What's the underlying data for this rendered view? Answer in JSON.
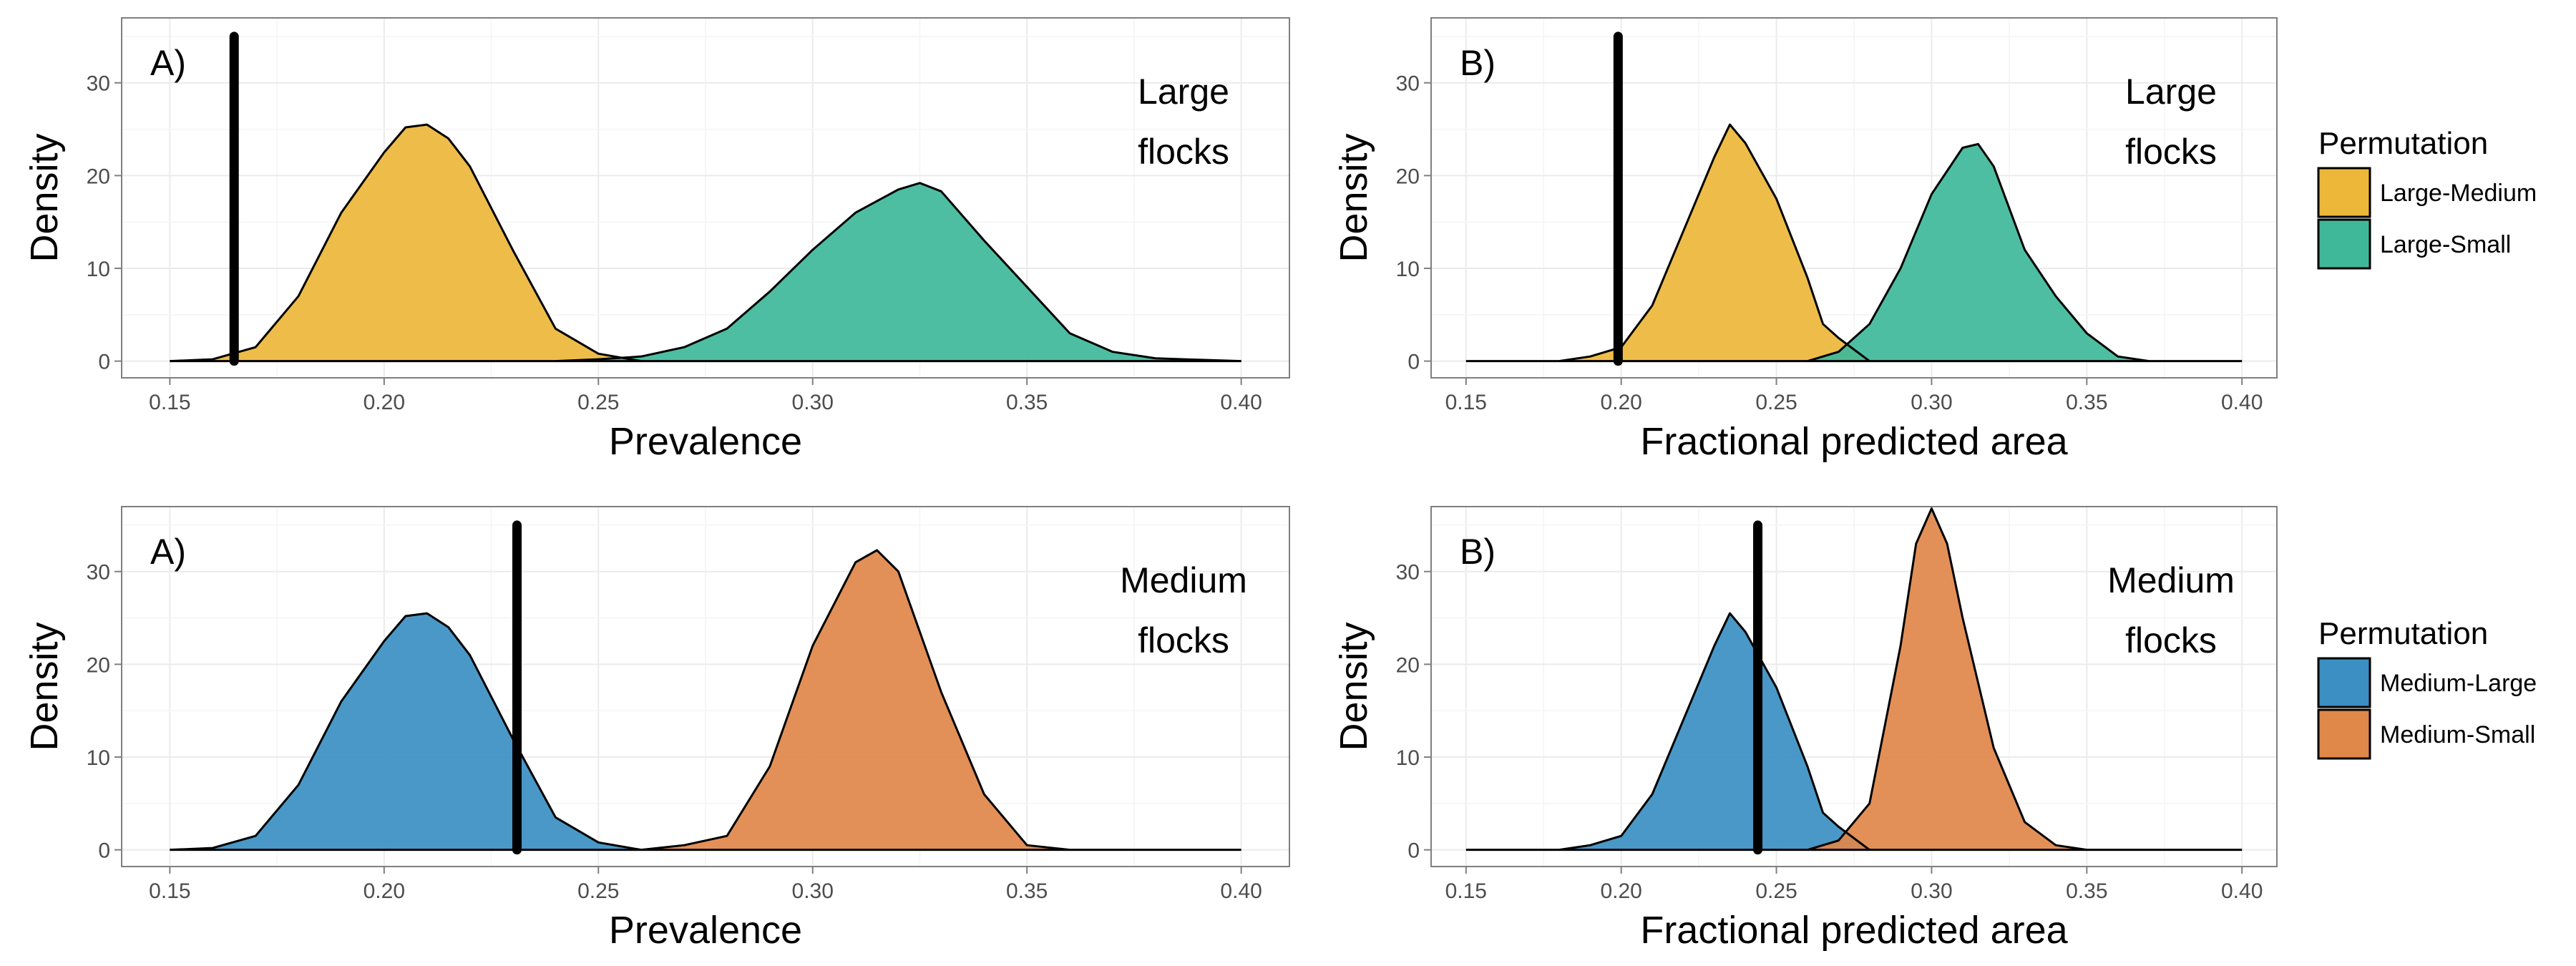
{
  "chart_data": [
    {
      "type": "area",
      "panel_tag": "A)",
      "note_lines": [
        "Large",
        "flocks"
      ],
      "xlabel": "Prevalence",
      "ylabel": "Density",
      "xlim": [
        0.15,
        0.4
      ],
      "ylim": [
        0,
        37
      ],
      "x_ticks": [
        "0.15",
        "0.20",
        "0.25",
        "0.30",
        "0.35",
        "0.40"
      ],
      "y_ticks": [
        "0",
        "10",
        "20",
        "30"
      ],
      "grid": true,
      "legend": "Large-Medium / Large-Small",
      "observed": {
        "x": 0.165,
        "y_top": 35
      },
      "series": [
        {
          "name": "Large-Medium",
          "color": "#EDB73A",
          "x": [
            0.15,
            0.16,
            0.17,
            0.18,
            0.19,
            0.2,
            0.205,
            0.21,
            0.215,
            0.22,
            0.23,
            0.24,
            0.25,
            0.26
          ],
          "y": [
            0,
            0.2,
            1.5,
            7,
            16,
            22.5,
            25.2,
            25.5,
            24,
            21,
            12,
            3.5,
            0.8,
            0
          ]
        },
        {
          "name": "Large-Small",
          "color": "#3FB89A",
          "x": [
            0.24,
            0.25,
            0.26,
            0.27,
            0.28,
            0.29,
            0.3,
            0.31,
            0.32,
            0.325,
            0.33,
            0.34,
            0.35,
            0.36,
            0.37,
            0.38,
            0.4
          ],
          "y": [
            0,
            0.2,
            0.5,
            1.5,
            3.5,
            7.5,
            12,
            16,
            18.5,
            19.2,
            18.3,
            13,
            8,
            3,
            1,
            0.3,
            0
          ]
        }
      ]
    },
    {
      "type": "area",
      "panel_tag": "B)",
      "note_lines": [
        "Large",
        "flocks"
      ],
      "xlabel": "Fractional predicted area",
      "ylabel": "Density",
      "xlim": [
        0.15,
        0.4
      ],
      "ylim": [
        0,
        37
      ],
      "x_ticks": [
        "0.15",
        "0.20",
        "0.25",
        "0.30",
        "0.35",
        "0.40"
      ],
      "y_ticks": [
        "0",
        "10",
        "20",
        "30"
      ],
      "grid": true,
      "legend": "right",
      "observed": {
        "x": 0.199,
        "y_top": 35
      },
      "series": [
        {
          "name": "Large-Medium",
          "color": "#EDB73A",
          "x": [
            0.18,
            0.19,
            0.2,
            0.21,
            0.22,
            0.23,
            0.235,
            0.24,
            0.25,
            0.26,
            0.265,
            0.27,
            0.28
          ],
          "y": [
            0,
            0.5,
            1.5,
            6,
            14,
            22,
            25.5,
            23.5,
            17.5,
            9,
            4,
            2.5,
            0
          ]
        },
        {
          "name": "Large-Small",
          "color": "#3FB89A",
          "x": [
            0.26,
            0.27,
            0.28,
            0.29,
            0.3,
            0.31,
            0.315,
            0.32,
            0.33,
            0.34,
            0.35,
            0.36,
            0.37
          ],
          "y": [
            0,
            1,
            4,
            10,
            18,
            23,
            23.4,
            21,
            12,
            7,
            3,
            0.5,
            0
          ]
        }
      ]
    },
    {
      "type": "area",
      "panel_tag": "A)",
      "note_lines": [
        "Medium",
        "flocks"
      ],
      "xlabel": "Prevalence",
      "ylabel": "Density",
      "xlim": [
        0.15,
        0.4
      ],
      "ylim": [
        0,
        37
      ],
      "x_ticks": [
        "0.15",
        "0.20",
        "0.25",
        "0.30",
        "0.35",
        "0.40"
      ],
      "y_ticks": [
        "0",
        "10",
        "20",
        "30"
      ],
      "grid": true,
      "legend": "right",
      "observed": {
        "x": 0.231,
        "y_top": 35
      },
      "series": [
        {
          "name": "Medium-Large",
          "color": "#3B8FC2",
          "x": [
            0.15,
            0.16,
            0.17,
            0.18,
            0.19,
            0.2,
            0.205,
            0.21,
            0.215,
            0.22,
            0.23,
            0.24,
            0.25,
            0.26
          ],
          "y": [
            0,
            0.2,
            1.5,
            7,
            16,
            22.5,
            25.2,
            25.5,
            24,
            21,
            12,
            3.5,
            0.8,
            0
          ]
        },
        {
          "name": "Medium-Small",
          "color": "#E0874A",
          "x": [
            0.26,
            0.27,
            0.275,
            0.28,
            0.29,
            0.3,
            0.31,
            0.315,
            0.32,
            0.33,
            0.34,
            0.35,
            0.36
          ],
          "y": [
            0,
            0.5,
            1,
            1.5,
            9,
            22,
            31,
            32.3,
            30,
            17,
            6,
            0.5,
            0
          ]
        }
      ]
    },
    {
      "type": "area",
      "panel_tag": "B)",
      "note_lines": [
        "Medium",
        "flocks"
      ],
      "xlabel": "Fractional predicted area",
      "ylabel": "Density",
      "xlim": [
        0.15,
        0.4
      ],
      "ylim": [
        0,
        37
      ],
      "x_ticks": [
        "0.15",
        "0.20",
        "0.25",
        "0.30",
        "0.35",
        "0.40"
      ],
      "y_ticks": [
        "0",
        "10",
        "20",
        "30"
      ],
      "grid": true,
      "legend": "right",
      "observed": {
        "x": 0.244,
        "y_top": 35
      },
      "series": [
        {
          "name": "Medium-Large",
          "color": "#3B8FC2",
          "x": [
            0.18,
            0.19,
            0.2,
            0.21,
            0.22,
            0.23,
            0.235,
            0.24,
            0.25,
            0.26,
            0.265,
            0.27,
            0.28
          ],
          "y": [
            0,
            0.5,
            1.5,
            6,
            14,
            22,
            25.5,
            23.5,
            17.5,
            9,
            4,
            2.5,
            0
          ]
        },
        {
          "name": "Medium-Small",
          "color": "#E0874A",
          "x": [
            0.26,
            0.27,
            0.28,
            0.29,
            0.295,
            0.3,
            0.305,
            0.31,
            0.32,
            0.33,
            0.34,
            0.35
          ],
          "y": [
            0,
            1,
            5,
            22,
            33,
            36.8,
            33,
            25,
            11,
            3,
            0.5,
            0
          ]
        }
      ]
    }
  ],
  "legends": [
    {
      "title": "Permutation",
      "items": [
        {
          "label": "Large-Medium",
          "color": "#EDB73A"
        },
        {
          "label": "Large-Small",
          "color": "#3FB89A"
        }
      ]
    },
    {
      "title": "Permutation",
      "items": [
        {
          "label": "Medium-Large",
          "color": "#3B8FC2"
        },
        {
          "label": "Medium-Small",
          "color": "#E0874A"
        }
      ]
    }
  ]
}
